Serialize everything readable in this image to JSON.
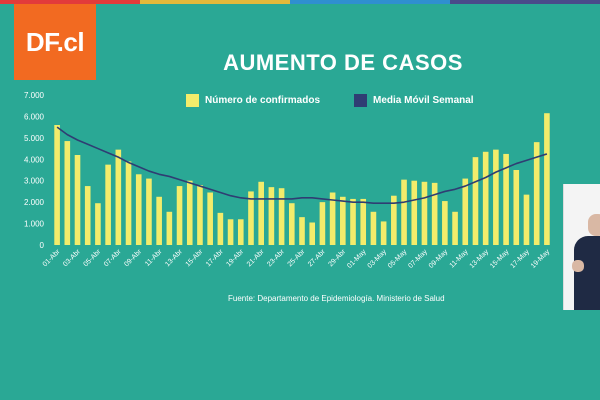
{
  "logo": {
    "text": "DF.cl"
  },
  "colors": {
    "background": "#2aa895",
    "logo": "#f26a21",
    "bars": "#f3ec6b",
    "line": "#2f3d73",
    "topbar": [
      "#e23b3b",
      "#e3b93b",
      "#2f8fd0",
      "#4a4a8a"
    ]
  },
  "chart_data": {
    "type": "bar",
    "title": "AUMENTO DE CASOS",
    "source": "Fuente: Departamento de Epidemiología. Ministerio de Salud",
    "legend_position": "top",
    "grid": false,
    "ylim": [
      0,
      7000
    ],
    "yticks": [
      "0",
      "1.000",
      "2.000",
      "3.000",
      "4.000",
      "5.000",
      "6.000",
      "7.000"
    ],
    "categories": [
      "01-Abr",
      "02-Abr",
      "03-Abr",
      "04-Abr",
      "05-Abr",
      "06-Abr",
      "07-Abr",
      "08-Abr",
      "09-Abr",
      "10-Abr",
      "11-Abr",
      "12-Abr",
      "13-Abr",
      "14-Abr",
      "15-Abr",
      "16-Abr",
      "17-Abr",
      "18-Abr",
      "19-Abr",
      "20-Abr",
      "21-Abr",
      "22-Abr",
      "23-Abr",
      "24-Abr",
      "25-Abr",
      "26-Abr",
      "27-Abr",
      "28-Abr",
      "29-Abr",
      "30-Abr",
      "01-May",
      "02-May",
      "03-May",
      "04-May",
      "05-May",
      "06-May",
      "07-May",
      "08-May",
      "09-May",
      "10-May",
      "11-May",
      "12-May",
      "13-May",
      "14-May",
      "15-May",
      "16-May",
      "17-May",
      "18-May",
      "19-May"
    ],
    "xtick_labels": [
      "01-Abr",
      "03-Abr",
      "05-Abr",
      "07-Abr",
      "09-Abr",
      "11-Abr",
      "13-Abr",
      "15-Abr",
      "17-Abr",
      "19-Abr",
      "21-Abr",
      "23-Abr",
      "25-Abr",
      "27-Abr",
      "29-Abr",
      "01-May",
      "03-May",
      "05-May",
      "07-May",
      "09-May",
      "11-May",
      "13-May",
      "15-May",
      "17-May",
      "19-May"
    ],
    "series": [
      {
        "name": "Número de confirmados",
        "kind": "bar",
        "values": [
          5600,
          4850,
          4200,
          2750,
          1950,
          3750,
          4450,
          3900,
          3300,
          3100,
          2250,
          1550,
          2750,
          3000,
          2800,
          2450,
          1500,
          1200,
          1200,
          2500,
          2950,
          2700,
          2650,
          1950,
          1300,
          1050,
          2000,
          2450,
          2250,
          2150,
          2150,
          1550,
          1100,
          2300,
          3050,
          3000,
          2950,
          2900,
          2050,
          1550,
          3100,
          4100,
          4350,
          4450,
          4250,
          3500,
          2350,
          4800,
          6150
        ]
      },
      {
        "name": "Media Móvil Semanal",
        "kind": "line",
        "values": [
          5500,
          5150,
          4900,
          4700,
          4500,
          4300,
          4100,
          3850,
          3650,
          3450,
          3300,
          3200,
          3050,
          2900,
          2750,
          2600,
          2450,
          2300,
          2200,
          2150,
          2150,
          2150,
          2150,
          2150,
          2200,
          2200,
          2150,
          2100,
          2050,
          2000,
          2000,
          1950,
          1950,
          1950,
          2000,
          2100,
          2200,
          2350,
          2500,
          2600,
          2750,
          2950,
          3150,
          3400,
          3600,
          3800,
          3950,
          4100,
          4250
        ]
      }
    ]
  }
}
